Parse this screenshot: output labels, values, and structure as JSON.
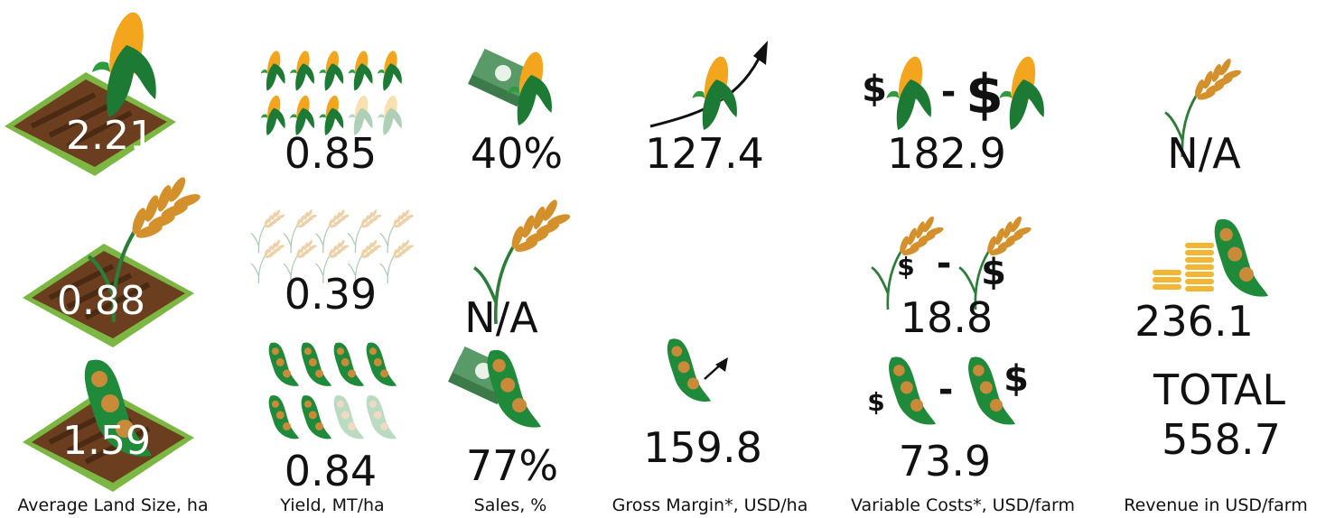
{
  "columns": [
    {
      "caption": "Average Land Size, ha",
      "cells": [
        "2.21",
        "0.88",
        "1.59"
      ]
    },
    {
      "caption": "Yield, MT/ha",
      "cells": [
        "0.85",
        "0.39",
        "0.84"
      ]
    },
    {
      "caption": "Sales, %",
      "cells": [
        "40%",
        "N/A",
        "77%"
      ]
    },
    {
      "caption": "Gross Margin*, USD/ha",
      "cells": [
        "127.4",
        "159.8"
      ]
    },
    {
      "caption": "Variable Costs*, USD/farm",
      "cells": [
        "182.9",
        "18.8",
        "73.9"
      ]
    },
    {
      "caption": "Revenue in USD/farm",
      "cells": [
        "N/A",
        "236.1"
      ],
      "total": {
        "label": "TOTAL",
        "value": "558.7"
      }
    }
  ],
  "icon_text": {
    "currency": "$",
    "separator": "-"
  }
}
